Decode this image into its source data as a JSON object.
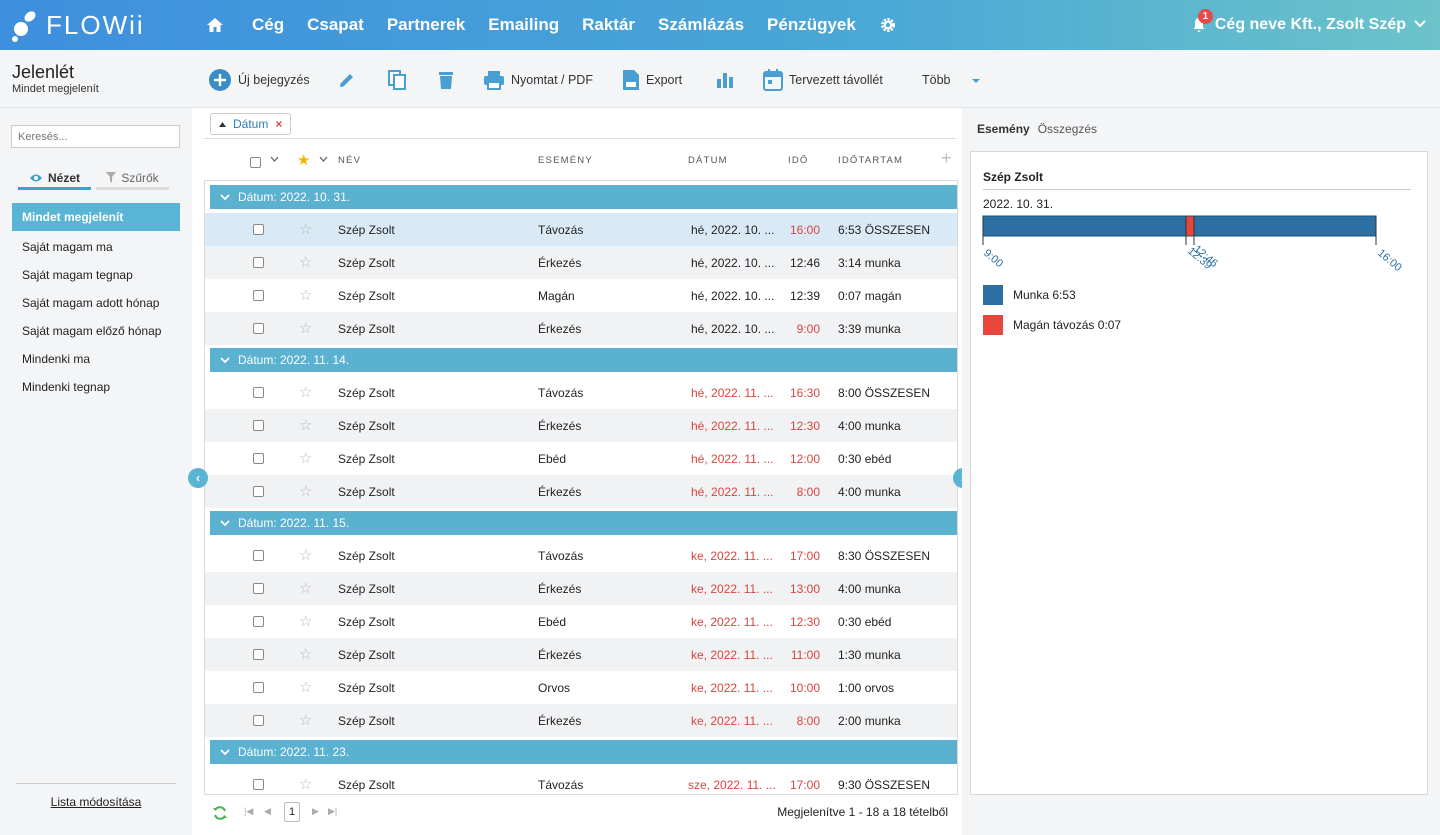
{
  "brand": {
    "name": "FLOWii"
  },
  "nav": {
    "items": [
      "Cég",
      "Csapat",
      "Partnerek",
      "Emailing",
      "Raktár",
      "Számlázás",
      "Pénzügyek"
    ]
  },
  "user": {
    "label": "Cég neve Kft., Zsolt Szép",
    "notifications": "1"
  },
  "page": {
    "title": "Jelenlét",
    "subtitle": "Mindet megjelenít"
  },
  "toolbar": {
    "new": "Új bejegyzés",
    "print": "Nyomtat / PDF",
    "export": "Export",
    "absence": "Tervezett távollét",
    "more": "Több"
  },
  "sidebar": {
    "search_placeholder": "Keresés...",
    "tab_view": "Nézet",
    "tab_filters": "Szűrők",
    "items": [
      "Mindet megjelenít",
      "Saját magam ma",
      "Saját magam tegnap",
      "Saját magam adott hónap",
      "Saját magam előző hónap",
      "Mindenki ma",
      "Mindenki tegnap"
    ],
    "footer": "Lista módosítása"
  },
  "grid": {
    "sort_chip": "Dátum",
    "headers": {
      "name": "NÉV",
      "event": "ESEMÉNY",
      "date": "DÁTUM",
      "time": "IDŐ",
      "duration": "IDŐTARTAM"
    },
    "groups": [
      {
        "label": "Dátum: 2022. 10. 31.",
        "rows": [
          {
            "name": "Szép Zsolt",
            "event": "Távozás",
            "date": "hé, 2022. 10. ...",
            "time": "16:00",
            "duration": "6:53 ÖSSZESEN",
            "date_red": false,
            "time_red": true,
            "selected": true
          },
          {
            "name": "Szép Zsolt",
            "event": "Érkezés",
            "date": "hé, 2022. 10. ...",
            "time": "12:46",
            "duration": "3:14 munka",
            "date_red": false,
            "time_red": false
          },
          {
            "name": "Szép Zsolt",
            "event": "Magán",
            "date": "hé, 2022. 10. ...",
            "time": "12:39",
            "duration": "0:07 magán",
            "date_red": false,
            "time_red": false
          },
          {
            "name": "Szép Zsolt",
            "event": "Érkezés",
            "date": "hé, 2022. 10. ...",
            "time": "9:00",
            "duration": "3:39 munka",
            "date_red": false,
            "time_red": true
          }
        ]
      },
      {
        "label": "Dátum: 2022. 11. 14.",
        "rows": [
          {
            "name": "Szép Zsolt",
            "event": "Távozás",
            "date": "hé, 2022. 11. ...",
            "time": "16:30",
            "duration": "8:00 ÖSSZESEN",
            "date_red": true,
            "time_red": true
          },
          {
            "name": "Szép Zsolt",
            "event": "Érkezés",
            "date": "hé, 2022. 11. ...",
            "time": "12:30",
            "duration": "4:00 munka",
            "date_red": true,
            "time_red": true
          },
          {
            "name": "Szép Zsolt",
            "event": "Ebéd",
            "date": "hé, 2022. 11. ...",
            "time": "12:00",
            "duration": "0:30 ebéd",
            "date_red": true,
            "time_red": true
          },
          {
            "name": "Szép Zsolt",
            "event": "Érkezés",
            "date": "hé, 2022. 11. ...",
            "time": "8:00",
            "duration": "4:00 munka",
            "date_red": true,
            "time_red": true
          }
        ]
      },
      {
        "label": "Dátum: 2022. 11. 15.",
        "rows": [
          {
            "name": "Szép Zsolt",
            "event": "Távozás",
            "date": "ke, 2022. 11. ...",
            "time": "17:00",
            "duration": "8:30 ÖSSZESEN",
            "date_red": true,
            "time_red": true
          },
          {
            "name": "Szép Zsolt",
            "event": "Érkezés",
            "date": "ke, 2022. 11. ...",
            "time": "13:00",
            "duration": "4:00 munka",
            "date_red": true,
            "time_red": true
          },
          {
            "name": "Szép Zsolt",
            "event": "Ebéd",
            "date": "ke, 2022. 11. ...",
            "time": "12:30",
            "duration": "0:30 ebéd",
            "date_red": true,
            "time_red": true
          },
          {
            "name": "Szép Zsolt",
            "event": "Érkezés",
            "date": "ke, 2022. 11. ...",
            "time": "11:00",
            "duration": "1:30 munka",
            "date_red": true,
            "time_red": true
          },
          {
            "name": "Szép Zsolt",
            "event": "Orvos",
            "date": "ke, 2022. 11. ...",
            "time": "10:00",
            "duration": "1:00 orvos",
            "date_red": true,
            "time_red": true
          },
          {
            "name": "Szép Zsolt",
            "event": "Érkezés",
            "date": "ke, 2022. 11. ...",
            "time": "8:00",
            "duration": "2:00 munka",
            "date_red": true,
            "time_red": true
          }
        ]
      },
      {
        "label": "Dátum: 2022. 11. 23.",
        "rows": [
          {
            "name": "Szép Zsolt",
            "event": "Távozás",
            "date": "sze, 2022. 11. ...",
            "time": "17:00",
            "duration": "9:30 ÖSSZESEN",
            "date_red": true,
            "time_red": true
          }
        ]
      }
    ],
    "pager": {
      "page": "1",
      "info": "Megjelenítve 1 - 18 a 18 tételből"
    }
  },
  "right": {
    "tab_event": "Esemény",
    "tab_summary": "Összegzés",
    "name": "Szép Zsolt",
    "date": "2022. 10. 31.",
    "timeline": {
      "start": "9:00",
      "end": "16:00",
      "ticks": [
        "9:00",
        "12:39",
        "12:46",
        "16:00"
      ],
      "work_color": "#2b6fa3",
      "private_color": "#e8463c"
    },
    "legend": [
      {
        "label": "Munka 6:53",
        "color": "#2b6fa3"
      },
      {
        "label": "Magán távozás 0:07",
        "color": "#e8463c"
      }
    ]
  }
}
